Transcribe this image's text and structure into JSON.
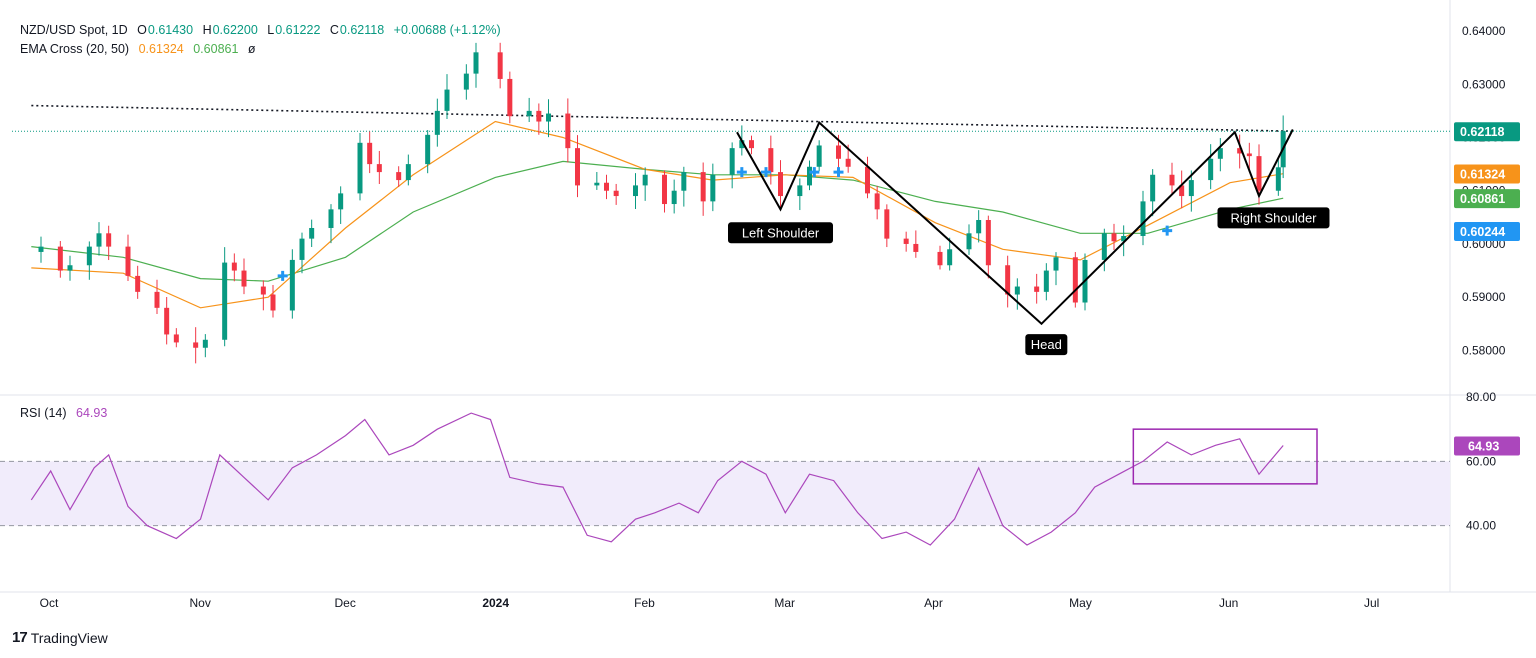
{
  "legend": {
    "symbol": "NZD/USD Spot, 1D",
    "o_label": "O",
    "open": "0.61430",
    "h_label": "H",
    "high": "0.62200",
    "l_label": "L",
    "low": "0.61222",
    "c_label": "C",
    "close": "0.62118",
    "change": "+0.00688 (+1.12%)",
    "ema_name": "EMA Cross (20, 50)",
    "ema20_value": "0.61324",
    "ema50_value": "0.60861",
    "ema_glyph": "ø"
  },
  "rsi_legend": {
    "name": "RSI (14)",
    "value": "64.93"
  },
  "branding": {
    "logo": "17",
    "name": "TradingView"
  },
  "colors": {
    "up": "#089981",
    "down": "#f23645",
    "ema20": "#f7931a",
    "ema50": "#4caf50",
    "rsi": "#ab47bc",
    "rsi_band": "#f1ecfb",
    "cross_marker": "#2196f3",
    "price_line": "#089981",
    "pattern": "#000000",
    "axis_text": "#131722"
  },
  "chart_data": [
    {
      "type": "candlestick",
      "title": "NZD/USD Spot, 1D",
      "ylim": [
        0.572,
        0.6432
      ],
      "grid": false,
      "x_ticks": [
        {
          "date": "2023-10-01",
          "label": "Oct"
        },
        {
          "date": "2023-11-01",
          "label": "Nov"
        },
        {
          "date": "2023-12-01",
          "label": "Dec"
        },
        {
          "date": "2024-01-01",
          "label": "2024"
        },
        {
          "date": "2024-02-01",
          "label": "Feb"
        },
        {
          "date": "2024-03-01",
          "label": "Mar"
        },
        {
          "date": "2024-04-01",
          "label": "Apr"
        },
        {
          "date": "2024-05-01",
          "label": "May"
        },
        {
          "date": "2024-06-01",
          "label": "Jun"
        },
        {
          "date": "2024-07-01",
          "label": "Jul"
        }
      ],
      "y_ticks": [
        "0.58000",
        "0.59000",
        "0.60000",
        "0.61000",
        "0.62000",
        "0.63000",
        "0.64000"
      ],
      "price_labels": [
        {
          "name": "last-close",
          "value": "0.62118",
          "y": 0.62118,
          "color": "#089981"
        },
        {
          "name": "ema20",
          "value": "0.61324",
          "y": 0.61324,
          "color": "#f7931a"
        },
        {
          "name": "ema50",
          "value": "0.60861",
          "y": 0.60861,
          "color": "#4caf50"
        },
        {
          "name": "cross",
          "value": "0.60244",
          "y": 0.60244,
          "color": "#2196f3"
        }
      ],
      "series": [
        {
          "name": "NZD/USD",
          "type": "candlestick",
          "closes": [
            [
              "2023-09-27",
              0.5985
            ],
            [
              "2023-09-29",
              0.5995
            ],
            [
              "2023-10-03",
              0.595
            ],
            [
              "2023-10-05",
              0.596
            ],
            [
              "2023-10-09",
              0.5995
            ],
            [
              "2023-10-11",
              0.602
            ],
            [
              "2023-10-13",
              0.5995
            ],
            [
              "2023-10-17",
              0.594
            ],
            [
              "2023-10-19",
              0.591
            ],
            [
              "2023-10-23",
              0.588
            ],
            [
              "2023-10-25",
              0.583
            ],
            [
              "2023-10-27",
              0.5815
            ],
            [
              "2023-10-31",
              0.5805
            ],
            [
              "2023-11-02",
              0.582
            ],
            [
              "2023-11-06",
              0.5965
            ],
            [
              "2023-11-08",
              0.595
            ],
            [
              "2023-11-10",
              0.592
            ],
            [
              "2023-11-14",
              0.5905
            ],
            [
              "2023-11-16",
              0.5875
            ],
            [
              "2023-11-20",
              0.597
            ],
            [
              "2023-11-22",
              0.601
            ],
            [
              "2023-11-24",
              0.603
            ],
            [
              "2023-11-28",
              0.6065
            ],
            [
              "2023-11-30",
              0.6095
            ],
            [
              "2023-12-04",
              0.619
            ],
            [
              "2023-12-06",
              0.615
            ],
            [
              "2023-12-08",
              0.6135
            ],
            [
              "2023-12-12",
              0.612
            ],
            [
              "2023-12-14",
              0.615
            ],
            [
              "2023-12-18",
              0.6205
            ],
            [
              "2023-12-20",
              0.625
            ],
            [
              "2023-12-22",
              0.629
            ],
            [
              "2023-12-26",
              0.632
            ],
            [
              "2023-12-28",
              0.636
            ],
            [
              "2024-01-02",
              0.631
            ],
            [
              "2024-01-04",
              0.624
            ],
            [
              "2024-01-08",
              0.625
            ],
            [
              "2024-01-10",
              0.623
            ],
            [
              "2024-01-12",
              0.6245
            ],
            [
              "2024-01-16",
              0.618
            ],
            [
              "2024-01-18",
              0.611
            ],
            [
              "2024-01-22",
              0.6115
            ],
            [
              "2024-01-24",
              0.61
            ],
            [
              "2024-01-26",
              0.609
            ],
            [
              "2024-01-30",
              0.611
            ],
            [
              "2024-02-01",
              0.613
            ],
            [
              "2024-02-05",
              0.6075
            ],
            [
              "2024-02-07",
              0.61
            ],
            [
              "2024-02-09",
              0.6135
            ],
            [
              "2024-02-13",
              0.608
            ],
            [
              "2024-02-15",
              0.613
            ],
            [
              "2024-02-19",
              0.618
            ],
            [
              "2024-02-21",
              0.6195
            ],
            [
              "2024-02-23",
              0.618
            ],
            [
              "2024-02-27",
              0.6135
            ],
            [
              "2024-02-29",
              0.609
            ],
            [
              "2024-03-04",
              0.611
            ],
            [
              "2024-03-06",
              0.6145
            ],
            [
              "2024-03-08",
              0.6185
            ],
            [
              "2024-03-12",
              0.616
            ],
            [
              "2024-03-14",
              0.6145
            ],
            [
              "2024-03-18",
              0.6095
            ],
            [
              "2024-03-20",
              0.6065
            ],
            [
              "2024-03-22",
              0.601
            ],
            [
              "2024-03-26",
              0.6
            ],
            [
              "2024-03-28",
              0.5985
            ],
            [
              "2024-04-02",
              0.596
            ],
            [
              "2024-04-04",
              0.599
            ],
            [
              "2024-04-08",
              0.602
            ],
            [
              "2024-04-10",
              0.6045
            ],
            [
              "2024-04-12",
              0.596
            ],
            [
              "2024-04-16",
              0.5905
            ],
            [
              "2024-04-18",
              0.592
            ],
            [
              "2024-04-22",
              0.591
            ],
            [
              "2024-04-24",
              0.595
            ],
            [
              "2024-04-26",
              0.5975
            ],
            [
              "2024-04-30",
              0.589
            ],
            [
              "2024-05-02",
              0.597
            ],
            [
              "2024-05-06",
              0.602
            ],
            [
              "2024-05-08",
              0.6005
            ],
            [
              "2024-05-10",
              0.6015
            ],
            [
              "2024-05-14",
              0.608
            ],
            [
              "2024-05-16",
              0.613
            ],
            [
              "2024-05-20",
              0.611
            ],
            [
              "2024-05-22",
              0.609
            ],
            [
              "2024-05-24",
              0.612
            ],
            [
              "2024-05-28",
              0.616
            ],
            [
              "2024-05-30",
              0.618
            ],
            [
              "2024-06-03",
              0.617
            ],
            [
              "2024-06-05",
              0.6165
            ],
            [
              "2024-06-07",
              0.61
            ],
            [
              "2024-06-11",
              0.6144
            ],
            [
              "2024-06-12",
              0.6212
            ]
          ]
        },
        {
          "name": "EMA 20",
          "type": "line",
          "points": [
            [
              "2023-09-27",
              0.5955
            ],
            [
              "2023-10-16",
              0.5945
            ],
            [
              "2023-11-01",
              0.588
            ],
            [
              "2023-11-15",
              0.59
            ],
            [
              "2023-12-01",
              0.603
            ],
            [
              "2023-12-15",
              0.613
            ],
            [
              "2024-01-01",
              0.623
            ],
            [
              "2024-01-15",
              0.62
            ],
            [
              "2024-02-01",
              0.614
            ],
            [
              "2024-02-15",
              0.612
            ],
            [
              "2024-03-01",
              0.613
            ],
            [
              "2024-03-15",
              0.6125
            ],
            [
              "2024-04-01",
              0.604
            ],
            [
              "2024-04-15",
              0.599
            ],
            [
              "2024-05-01",
              0.597
            ],
            [
              "2024-05-15",
              0.6035
            ],
            [
              "2024-06-01",
              0.6115
            ],
            [
              "2024-06-12",
              0.6132
            ]
          ]
        },
        {
          "name": "EMA 50",
          "type": "line",
          "points": [
            [
              "2023-09-27",
              0.5995
            ],
            [
              "2023-10-16",
              0.5975
            ],
            [
              "2023-11-01",
              0.5935
            ],
            [
              "2023-11-15",
              0.593
            ],
            [
              "2023-12-01",
              0.5975
            ],
            [
              "2023-12-15",
              0.606
            ],
            [
              "2024-01-01",
              0.6125
            ],
            [
              "2024-01-15",
              0.6155
            ],
            [
              "2024-02-01",
              0.614
            ],
            [
              "2024-02-15",
              0.613
            ],
            [
              "2024-03-01",
              0.613
            ],
            [
              "2024-03-15",
              0.612
            ],
            [
              "2024-04-01",
              0.608
            ],
            [
              "2024-04-15",
              0.606
            ],
            [
              "2024-05-01",
              0.602
            ],
            [
              "2024-05-15",
              0.602
            ],
            [
              "2024-06-01",
              0.6065
            ],
            [
              "2024-06-12",
              0.6086
            ]
          ]
        }
      ],
      "cross_markers": [
        [
          "2023-11-18",
          0.594
        ],
        [
          "2024-02-21",
          0.6135
        ],
        [
          "2024-02-26",
          0.6135
        ],
        [
          "2024-03-07",
          0.6135
        ],
        [
          "2024-03-12",
          0.6135
        ],
        [
          "2024-05-19",
          0.6025
        ]
      ],
      "resistance_line": {
        "style": "dotted",
        "from": [
          "2023-09-27",
          0.626
        ],
        "to": [
          "2024-06-13",
          0.6212
        ]
      },
      "pattern_path": [
        [
          "2024-02-20",
          0.621
        ],
        [
          "2024-02-29",
          0.6065
        ],
        [
          "2024-03-08",
          0.6228
        ],
        [
          "2024-04-23",
          0.585
        ],
        [
          "2024-06-02",
          0.621
        ],
        [
          "2024-06-07",
          0.609
        ],
        [
          "2024-06-14",
          0.6215
        ]
      ],
      "annotations": [
        {
          "text": "Left Shoulder",
          "x": "2024-02-29",
          "y": 0.602
        },
        {
          "text": "Head",
          "x": "2024-04-24",
          "y": 0.581
        },
        {
          "text": "Right Shoulder",
          "x": "2024-06-10",
          "y": 0.6048
        }
      ]
    },
    {
      "type": "line",
      "title": "RSI (14)",
      "ylim": [
        20,
        80
      ],
      "y_ticks": [
        "40.00",
        "60.00",
        "80.00"
      ],
      "band": [
        40,
        60
      ],
      "value_label": "64.93",
      "series": [
        {
          "name": "RSI (14)",
          "points": [
            [
              "2023-09-27",
              48
            ],
            [
              "2023-10-01",
              57
            ],
            [
              "2023-10-05",
              45
            ],
            [
              "2023-10-10",
              58
            ],
            [
              "2023-10-13",
              62
            ],
            [
              "2023-10-17",
              46
            ],
            [
              "2023-10-21",
              40
            ],
            [
              "2023-10-27",
              36
            ],
            [
              "2023-11-01",
              42
            ],
            [
              "2023-11-05",
              62
            ],
            [
              "2023-11-10",
              55
            ],
            [
              "2023-11-15",
              48
            ],
            [
              "2023-11-20",
              58
            ],
            [
              "2023-11-25",
              62
            ],
            [
              "2023-12-01",
              68
            ],
            [
              "2023-12-05",
              73
            ],
            [
              "2023-12-10",
              62
            ],
            [
              "2023-12-15",
              65
            ],
            [
              "2023-12-20",
              70
            ],
            [
              "2023-12-27",
              75
            ],
            [
              "2023-12-31",
              73
            ],
            [
              "2024-01-04",
              55
            ],
            [
              "2024-01-10",
              53
            ],
            [
              "2024-01-15",
              52
            ],
            [
              "2024-01-20",
              37
            ],
            [
              "2024-01-25",
              35
            ],
            [
              "2024-01-30",
              42
            ],
            [
              "2024-02-03",
              44
            ],
            [
              "2024-02-08",
              47
            ],
            [
              "2024-02-12",
              44
            ],
            [
              "2024-02-16",
              54
            ],
            [
              "2024-02-21",
              60
            ],
            [
              "2024-02-26",
              56
            ],
            [
              "2024-03-01",
              44
            ],
            [
              "2024-03-06",
              56
            ],
            [
              "2024-03-11",
              54
            ],
            [
              "2024-03-16",
              44
            ],
            [
              "2024-03-21",
              36
            ],
            [
              "2024-03-26",
              38
            ],
            [
              "2024-03-31",
              34
            ],
            [
              "2024-04-05",
              42
            ],
            [
              "2024-04-10",
              58
            ],
            [
              "2024-04-15",
              40
            ],
            [
              "2024-04-20",
              34
            ],
            [
              "2024-04-25",
              38
            ],
            [
              "2024-04-30",
              44
            ],
            [
              "2024-05-04",
              52
            ],
            [
              "2024-05-09",
              56
            ],
            [
              "2024-05-14",
              60
            ],
            [
              "2024-05-19",
              66
            ],
            [
              "2024-05-24",
              62
            ],
            [
              "2024-05-29",
              65
            ],
            [
              "2024-06-03",
              67
            ],
            [
              "2024-06-07",
              56
            ],
            [
              "2024-06-12",
              64.93
            ]
          ]
        }
      ],
      "highlight_box": {
        "from": [
          "2024-05-12",
          53
        ],
        "to": [
          "2024-06-19",
          70
        ]
      }
    }
  ]
}
